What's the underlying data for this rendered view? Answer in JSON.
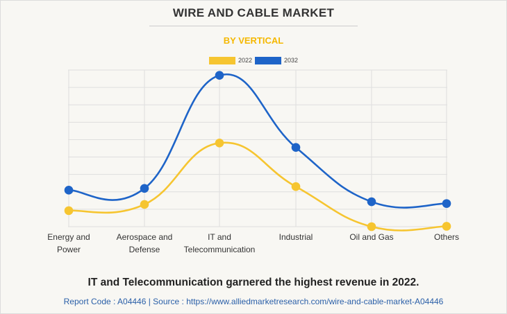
{
  "header": {
    "title": "WIRE AND CABLE MARKET",
    "subtitle": "BY VERTICAL"
  },
  "chart_data": {
    "type": "line",
    "title": "WIRE AND CABLE MARKET",
    "subtitle": "BY VERTICAL",
    "categories": [
      [
        "Energy and",
        "Power"
      ],
      [
        "Aerospace and",
        "Defense"
      ],
      [
        "IT and",
        "Telecommunication"
      ],
      [
        "Industrial"
      ],
      [
        "Oil and Gas"
      ],
      [
        "Others"
      ]
    ],
    "series": [
      {
        "name": "2022",
        "color": "#f6c530",
        "values": [
          9,
          12.5,
          47,
          22.5,
          0,
          0.2
        ]
      },
      {
        "name": "2032",
        "color": "#1e64c8",
        "values": [
          20.5,
          21.5,
          85,
          44.5,
          14,
          13
        ]
      }
    ],
    "ylim": [
      0,
      88
    ],
    "grid": true,
    "legend": "top-center",
    "xlabel": "",
    "ylabel": ""
  },
  "caption": {
    "headline": "IT and Telecommunication garnered the highest revenue in 2022.",
    "report_code": "Report Code : A04446  |  Source : https://www.alliedmarketresearch.com/wire-and-cable-market-A04446"
  }
}
